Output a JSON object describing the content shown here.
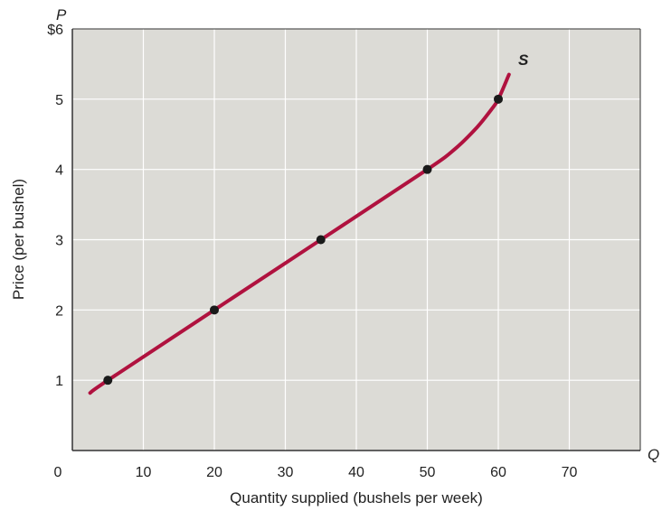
{
  "chart_data": {
    "type": "line",
    "title": "",
    "xlabel": "Quantity supplied (bushels per week)",
    "ylabel": "Price (per bushel)",
    "x_axis_letter": "Q",
    "y_axis_letter": "P",
    "xlim": [
      0,
      80
    ],
    "ylim": [
      0,
      6
    ],
    "x_ticks": [
      0,
      10,
      20,
      30,
      40,
      50,
      60,
      70
    ],
    "x_tick_labels": [
      "0",
      "10",
      "20",
      "30",
      "40",
      "50",
      "60",
      "70"
    ],
    "y_ticks": [
      1,
      2,
      3,
      4,
      5,
      6
    ],
    "y_tick_labels": [
      "1",
      "2",
      "3",
      "4",
      "5",
      "$6"
    ],
    "grid": true,
    "series": [
      {
        "name": "S",
        "color": "#b0123f",
        "curve": [
          [
            2.5,
            0.82
          ],
          [
            5,
            1
          ],
          [
            20,
            2
          ],
          [
            35,
            3
          ],
          [
            50,
            4
          ],
          [
            54,
            4.3
          ],
          [
            57,
            4.6
          ],
          [
            59,
            4.85
          ],
          [
            60,
            5
          ],
          [
            61.5,
            5.35
          ]
        ],
        "points": [
          {
            "x": 5,
            "y": 1
          },
          {
            "x": 20,
            "y": 2
          },
          {
            "x": 35,
            "y": 3
          },
          {
            "x": 50,
            "y": 4
          },
          {
            "x": 60,
            "y": 5
          }
        ]
      }
    ],
    "colors": {
      "plot_background": "#dcdbd6",
      "grid": "#ffffff",
      "axis": "#333333",
      "point": "#1a1a1a"
    }
  }
}
